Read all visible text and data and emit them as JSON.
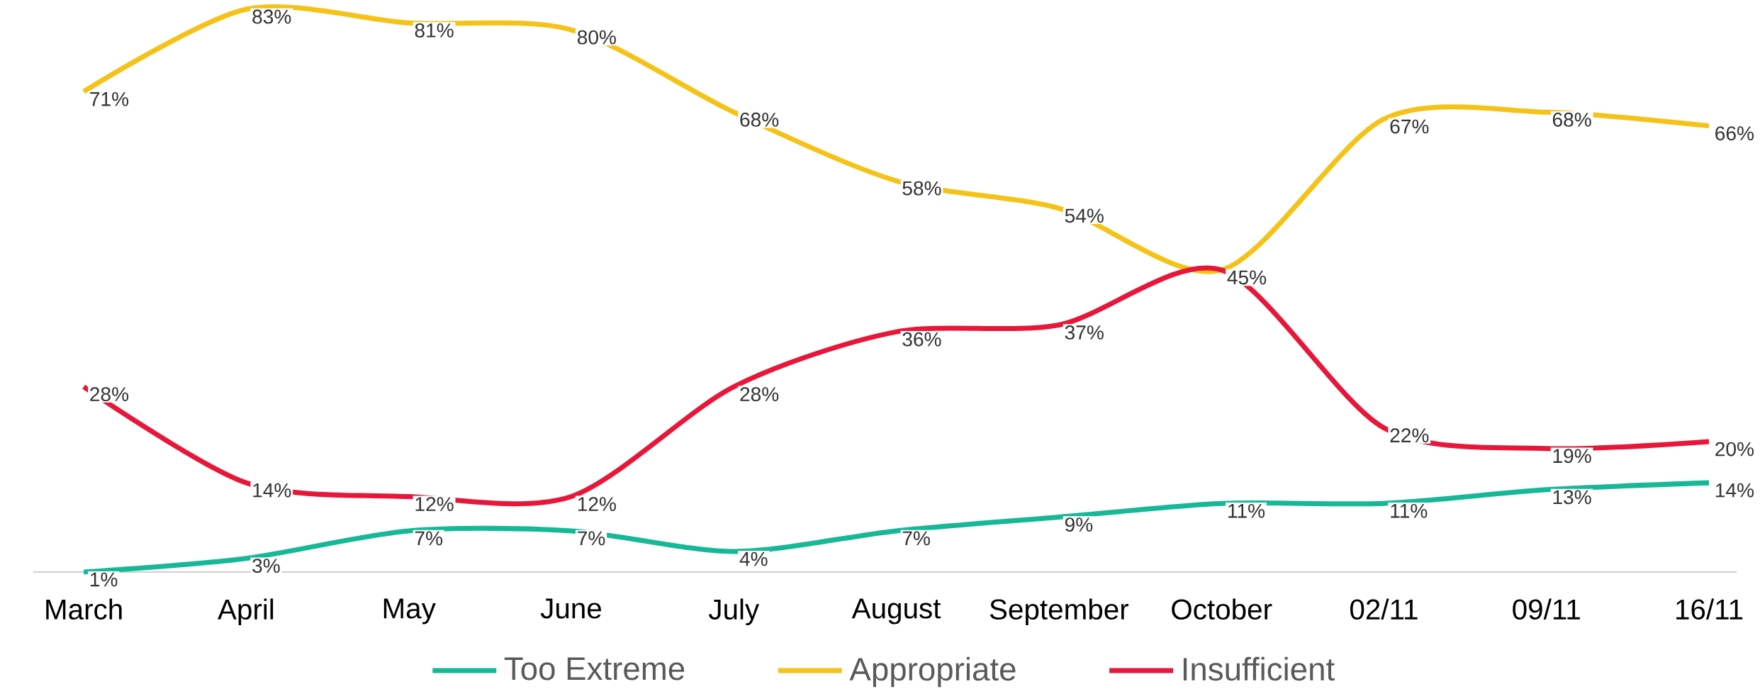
{
  "chart_data": {
    "type": "line",
    "categories": [
      "March",
      "April",
      "May",
      "June",
      "July",
      "August",
      "September",
      "October",
      "02/11",
      "09/11",
      "16/11"
    ],
    "series": [
      {
        "name": "Too Extreme",
        "color": "#17b897",
        "values": [
          1,
          3,
          7,
          7,
          4,
          7,
          9,
          11,
          11,
          13,
          14
        ],
        "value_labels": [
          "1%",
          "3%",
          "7%",
          "7%",
          "4%",
          "7%",
          "9%",
          "11%",
          "11%",
          "13%",
          "14%"
        ]
      },
      {
        "name": "Appropriate",
        "color": "#f5c218",
        "values": [
          71,
          83,
          81,
          80,
          68,
          58,
          54,
          45,
          67,
          68,
          66
        ],
        "value_labels": [
          "71%",
          "83%",
          "81%",
          "80%",
          "68%",
          "58%",
          "54%",
          null,
          "67%",
          "68%",
          "66%"
        ]
      },
      {
        "name": "Insufficient",
        "color": "#e8173a",
        "values": [
          28,
          14,
          12,
          12,
          28,
          36,
          37,
          45,
          22,
          19,
          20
        ],
        "value_labels": [
          "28%",
          "14%",
          "12%",
          "12%",
          "28%",
          "36%",
          "37%",
          "45%",
          "22%",
          "19%",
          "20%"
        ]
      }
    ],
    "legend": "bottom",
    "marker": "none",
    "line_style": "solid"
  }
}
